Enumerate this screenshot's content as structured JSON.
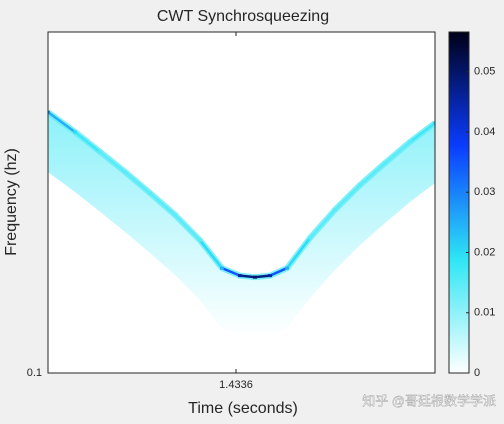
{
  "chart_data": {
    "type": "ridge",
    "title": "CWT Synchrosqueezing",
    "xlabel": "Time (seconds)",
    "ylabel": "Frequency (hz)",
    "x": [
      0,
      0.206,
      0.397,
      0.587,
      0.778,
      0.968,
      1.159,
      1.327,
      1.464,
      1.578,
      1.693,
      1.822,
      1.998,
      2.188,
      2.379,
      2.57,
      2.76,
      2.951
    ],
    "y": [
      0.582,
      0.509,
      0.445,
      0.389,
      0.337,
      0.291,
      0.245,
      0.203,
      0.193,
      0.191,
      0.193,
      0.203,
      0.249,
      0.301,
      0.356,
      0.413,
      0.476,
      0.541
    ],
    "intensity": [
      0.03,
      0.02,
      0.015,
      0.015,
      0.015,
      0.015,
      0.015,
      0.025,
      0.045,
      0.05,
      0.045,
      0.025,
      0.015,
      0.015,
      0.015,
      0.015,
      0.015,
      0.02
    ],
    "xlim": [
      0,
      2.951
    ],
    "xticks": [
      1.4336
    ],
    "ylim": [
      0.1,
      1
    ],
    "yticks": [
      0.1
    ],
    "log_y": true,
    "clim": [
      0,
      0.0566
    ],
    "cticks": [
      0,
      0.01,
      0.02,
      0.03,
      0.04,
      0.05
    ],
    "colormap": [
      "#ffffff",
      "#2ee6f5",
      "#0a3cff",
      "#000018"
    ],
    "watermark": "知乎 @哥廷根数学学派"
  }
}
